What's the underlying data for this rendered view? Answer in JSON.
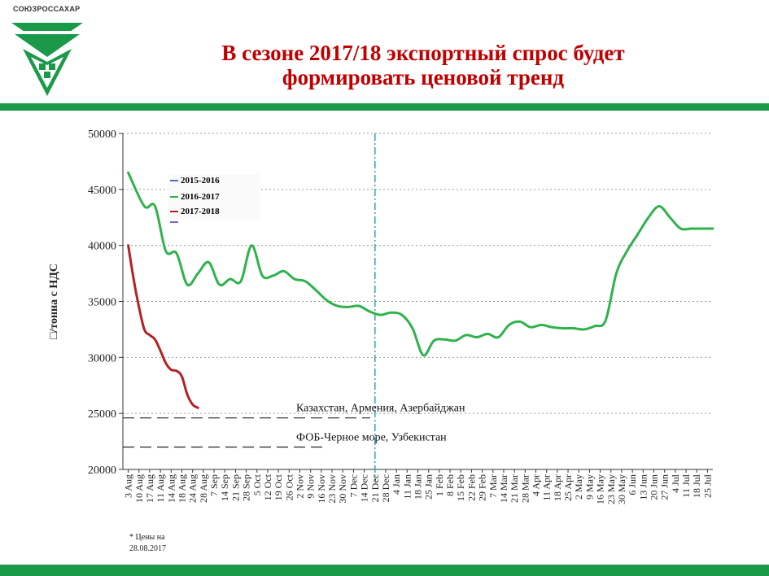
{
  "logo": {
    "name": "СОЮЗРОССАХАР"
  },
  "header": {
    "title_line1": "В сезоне 2017/18 экспортный спрос будет",
    "title_line2": "формировать ценовой тренд"
  },
  "colors": {
    "accent": "#1a9a48",
    "title": "#c00000"
  },
  "footnote": "* Цены на 28.08.2017",
  "chart_data": {
    "type": "line",
    "ylabel": "□/тонна с НДС",
    "ylim": [
      20000,
      50000
    ],
    "yticks": [
      20000,
      25000,
      30000,
      35000,
      40000,
      45000,
      50000
    ],
    "x_ticks": [
      "3 Aug",
      "10 Aug",
      "17 Aug",
      "11 Aug",
      "14 Aug",
      "18 Aug",
      "24 Aug",
      "28 Aug",
      "7 Sep",
      "14 Sep",
      "21 Sep",
      "28 Sep",
      "5 Oct",
      "12 Oct",
      "19 Oct",
      "26 Oct",
      "2 Nov",
      "9 Nov",
      "16 Nov",
      "23 Nov",
      "30 Nov",
      "7 Dec",
      "14 Dec",
      "21 Dec",
      "28 Dec",
      "4 Jan",
      "11 Jan",
      "18 Jan",
      "25 Jan",
      "1 Feb",
      "8 Feb",
      "15 Feb",
      "22 Feb",
      "29 Feb",
      "7 Mar",
      "14 Mar",
      "21 Mar",
      "28 Mar",
      "4 Apr",
      "11 Apr",
      "18 Apr",
      "25 Apr",
      "2 May",
      "9 May",
      "16 May",
      "23 May",
      "30 May",
      "6 Jun",
      "13 Jun",
      "20 Jun",
      "27 Jun",
      "4 Jul",
      "11 Jul",
      "18 Jul",
      "25 Jul"
    ],
    "grid": true,
    "legend_position": "top-left",
    "series": [
      {
        "name": "2015-2016",
        "color": "#4472c4",
        "x": [],
        "values": []
      },
      {
        "name": "2016-2017",
        "color": "#2fb24c",
        "x": [
          0.5,
          2,
          3,
          4,
          5,
          6,
          7,
          8,
          9,
          10,
          11,
          12,
          13,
          14,
          15,
          16,
          17,
          18,
          19,
          20,
          21,
          22,
          23,
          24,
          25,
          26,
          27,
          28,
          29,
          30,
          31,
          32,
          33,
          34,
          35,
          36,
          37,
          38,
          39,
          40,
          41,
          42,
          43,
          44,
          45,
          46,
          47,
          48,
          49,
          50,
          51,
          52,
          53,
          54,
          55
        ],
        "values": [
          46500,
          43500,
          43500,
          39500,
          39300,
          36500,
          37500,
          38500,
          36500,
          37000,
          36800,
          40000,
          37300,
          37300,
          37700,
          37000,
          36800,
          36000,
          35100,
          34600,
          34500,
          34600,
          34100,
          33800,
          34000,
          33800,
          32600,
          30200,
          31500,
          31600,
          31500,
          32000,
          31800,
          32100,
          31800,
          32900,
          33200,
          32700,
          32900,
          32700,
          32600,
          32600,
          32500,
          32800,
          33300,
          37500,
          39500,
          41000,
          42500,
          43500,
          42500,
          41500,
          41500,
          41500,
          41500
        ]
      },
      {
        "name": "2017-2018",
        "color": "#b22222",
        "x": [
          0.5,
          1,
          1.5,
          2,
          2.5,
          3,
          3.5,
          4,
          4.5,
          5,
          5.5,
          6,
          6.5,
          7
        ],
        "values": [
          40000,
          37000,
          34500,
          32500,
          32000,
          31600,
          30600,
          29500,
          28900,
          28800,
          28300,
          26700,
          25800,
          25500
        ]
      }
    ],
    "reference_lines": [
      {
        "label": "Казахстан, Армения, Азербайджан",
        "value": 24600
      },
      {
        "label": "ФОБ-Черное море, Узбекистан",
        "value": 22000
      }
    ],
    "vertical_marker": {
      "x": "21 Dec"
    }
  }
}
